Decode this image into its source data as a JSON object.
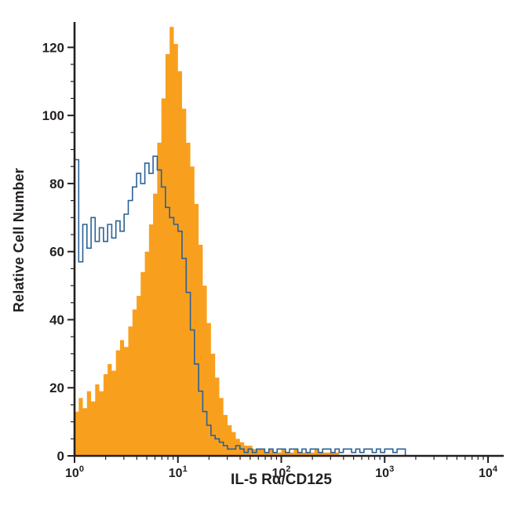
{
  "figure": {
    "background": "#ffffff"
  },
  "chart_data": {
    "type": "area",
    "subtype": "flow-cytometry-overlay-histogram",
    "title": "",
    "xlabel": "IL-5 Rα/CD125",
    "ylabel": "Relative Cell Number",
    "x_scale": "log10",
    "x_decades": [
      0,
      4
    ],
    "x_tick_exponents": [
      0,
      1,
      2,
      3,
      4
    ],
    "y_ticks": [
      0,
      20,
      40,
      60,
      80,
      100,
      120
    ],
    "ylim": [
      0,
      127
    ],
    "grid": "off",
    "legend": "none",
    "axis_color": "#231f20",
    "bin_log_start": 0,
    "bin_log_step": 0.04,
    "series": [
      {
        "name": "filled-histogram",
        "style": "filled",
        "color": "#F8A01E",
        "values": [
          13,
          17,
          14,
          19,
          16,
          21,
          19,
          24,
          27,
          25,
          31,
          34,
          32,
          38,
          43,
          47,
          54,
          60,
          68,
          77,
          92,
          105,
          118,
          126,
          121,
          113,
          102,
          92,
          85,
          74,
          62,
          50,
          39,
          30,
          23,
          17,
          12,
          9,
          7,
          5,
          4,
          3,
          3,
          2,
          2,
          2,
          1,
          2,
          1,
          1,
          2,
          1,
          1,
          2,
          1,
          1,
          1,
          1,
          2,
          1,
          1,
          1,
          1,
          1,
          0,
          0,
          0,
          0,
          0,
          0,
          0,
          0,
          0,
          0,
          0,
          0,
          0,
          0,
          0,
          0,
          0,
          0,
          0,
          0,
          0,
          0,
          0,
          0,
          0,
          0,
          0,
          0,
          0,
          0,
          0,
          0,
          0,
          0,
          0,
          0,
          0
        ]
      },
      {
        "name": "open-histogram",
        "style": "line",
        "color": "#2A6095",
        "values": [
          87,
          57,
          68,
          61,
          70,
          63,
          67,
          63,
          68,
          64,
          69,
          66,
          71,
          75,
          79,
          83,
          80,
          86,
          83,
          88,
          84,
          79,
          73,
          70,
          68,
          66,
          58,
          48,
          37,
          27,
          19,
          13,
          9,
          6,
          5,
          4,
          3,
          2,
          2,
          3,
          2,
          1,
          2,
          1,
          2,
          2,
          1,
          2,
          1,
          2,
          2,
          1,
          2,
          2,
          1,
          2,
          1,
          2,
          2,
          1,
          2,
          2,
          1,
          2,
          1,
          2,
          2,
          1,
          2,
          1,
          2,
          2,
          1,
          2,
          1,
          2,
          2,
          1,
          2,
          2,
          0,
          0,
          0,
          0,
          0,
          0,
          0,
          0,
          0,
          0,
          0,
          0,
          0,
          0,
          0,
          0,
          0,
          0,
          0,
          0,
          0
        ]
      }
    ]
  }
}
